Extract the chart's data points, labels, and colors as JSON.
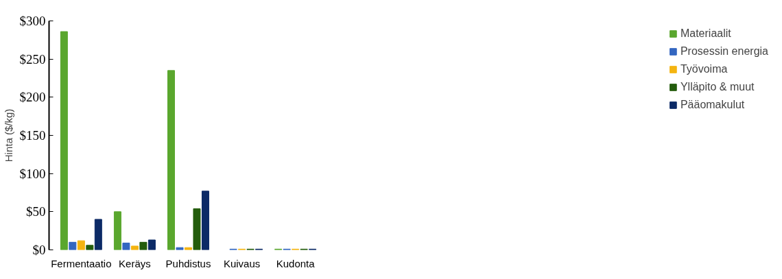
{
  "chart_data": {
    "type": "bar",
    "ylabel": "Hinta ($/kg)",
    "categories": [
      "Fermentaatio",
      "Keräys",
      "Puhdistus",
      "Kuivaus",
      "Kudonta"
    ],
    "series": [
      {
        "name": "Materiaalit",
        "color": "#5aa72e",
        "values": [
          286,
          50,
          235,
          null,
          1
        ]
      },
      {
        "name": "Prosessin energia",
        "color": "#3366c0",
        "values": [
          10,
          9,
          3,
          1,
          1
        ]
      },
      {
        "name": "Työvoima",
        "color": "#f4b410",
        "values": [
          12,
          5,
          3,
          1,
          1
        ]
      },
      {
        "name": "Ylläpito & muut",
        "color": "#235c0c",
        "values": [
          6,
          10,
          54,
          1,
          1
        ]
      },
      {
        "name": "Pääomakulut",
        "color": "#0c2a66",
        "values": [
          40,
          13,
          77,
          1,
          1
        ]
      }
    ],
    "ylim": [
      0,
      300
    ],
    "yticks": [
      {
        "value": 0,
        "label": "$0"
      },
      {
        "value": 50,
        "label": "$50"
      },
      {
        "value": 100,
        "label": "$100"
      },
      {
        "value": 150,
        "label": "$150"
      },
      {
        "value": 200,
        "label": "$200"
      },
      {
        "value": 250,
        "label": "$250"
      },
      {
        "value": 300,
        "label": "$300"
      }
    ],
    "grid": false,
    "legend": "right"
  }
}
